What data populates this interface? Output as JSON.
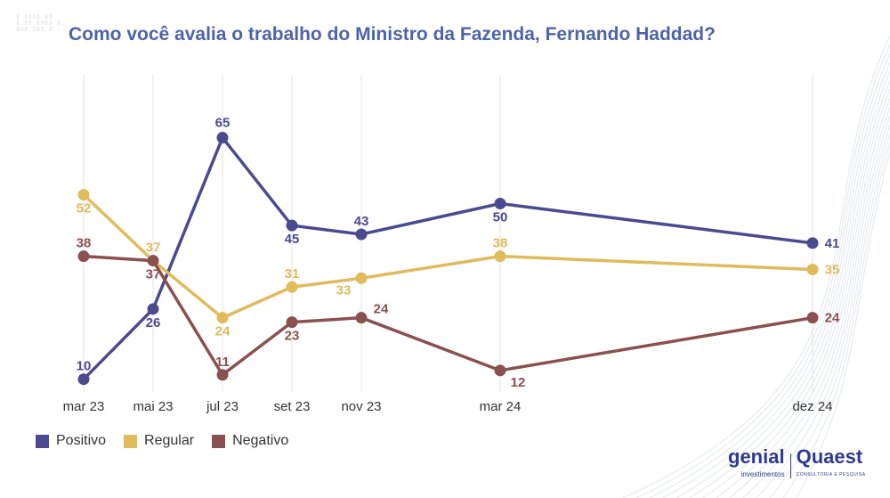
{
  "title": "Como você avalia o trabalho do Ministro da Fazenda, Fernando Haddad?",
  "logos": {
    "genial": "genial",
    "genial_sub": "investimentos",
    "quaest": "Quaest",
    "quaest_sub": "CONSULTORIA E PESQUISA"
  },
  "chart_data": {
    "type": "line",
    "title": "Como você avalia o trabalho do Ministro da Fazenda, Fernando Haddad?",
    "categories": [
      "mar 23",
      "mai 23",
      "jul 23",
      "set 23",
      "nov 23",
      "mar 24",
      "dez 24"
    ],
    "x_months": [
      0,
      2,
      4,
      6,
      8,
      12,
      21
    ],
    "grid": "vertical",
    "legend": "bottom-left",
    "series": [
      {
        "name": "Positivo",
        "color": "#4b4a8e",
        "values": [
          10,
          26,
          65,
          45,
          43,
          50,
          41
        ]
      },
      {
        "name": "Regular",
        "color": "#dfbb5c",
        "values": [
          52,
          37,
          24,
          31,
          33,
          38,
          35
        ]
      },
      {
        "name": "Negativo",
        "color": "#8a5150",
        "values": [
          38,
          37,
          11,
          23,
          24,
          12,
          24
        ]
      }
    ]
  }
}
